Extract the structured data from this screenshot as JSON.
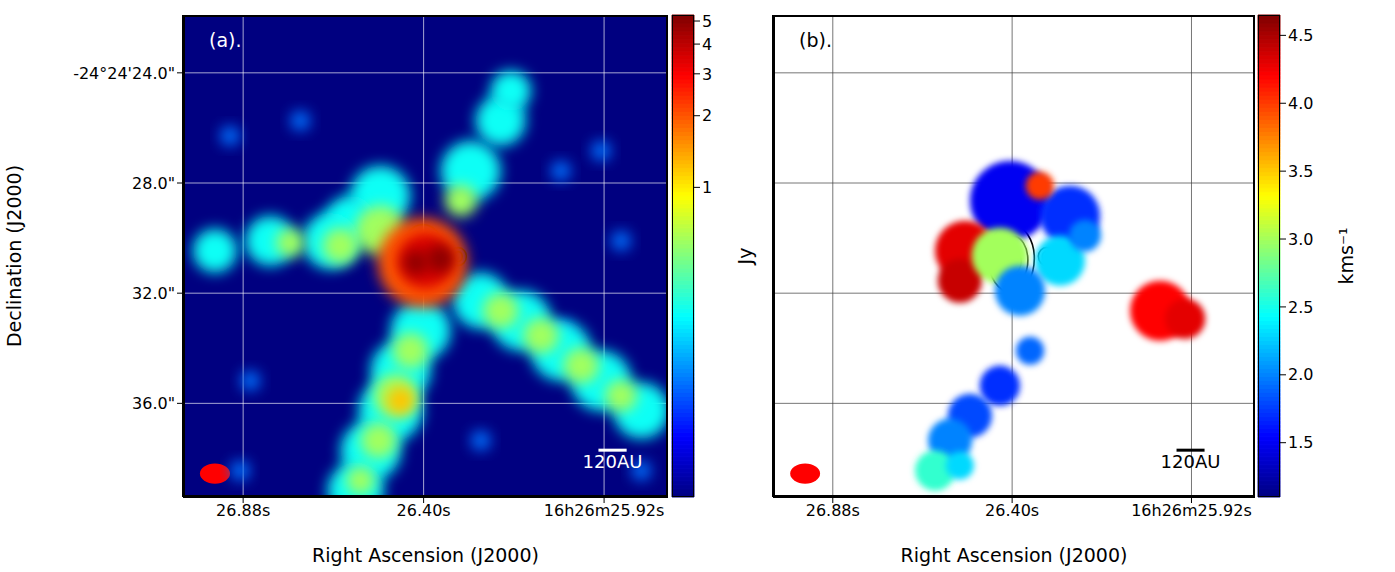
{
  "chart_data": [
    {
      "type": "heatmap",
      "title": "(a).",
      "x_label": "Right Ascension (J2000)",
      "y_label": "Declination (J2000)",
      "xlim": [
        27.04,
        25.75
      ],
      "xticks": [
        {
          "value": 26.88,
          "label": "26.88s"
        },
        {
          "value": 26.4,
          "label": "26.40s"
        },
        {
          "value": 25.92,
          "label": "16h26m25.92s"
        }
      ],
      "ylim": [
        39.4,
        21.9
      ],
      "yticks": [
        {
          "value": 24,
          "label": "-24°24'24.0\""
        },
        {
          "value": 28,
          "label": "28.0\""
        },
        {
          "value": 32,
          "label": "32.0\""
        },
        {
          "value": 36,
          "label": "36.0\""
        }
      ],
      "grid": true,
      "colorbar": {
        "label": "Jy",
        "log": true,
        "range": [
          0.05,
          5.3
        ],
        "ticks": [
          1,
          2,
          3,
          4,
          5
        ]
      },
      "blobs": [
        {
          "x": 26.915,
          "y": 26.29,
          "r": 0.36,
          "value": 0.15
        },
        {
          "x": 26.728,
          "y": 25.74,
          "r": 0.36,
          "value": 0.15
        },
        {
          "x": 25.928,
          "y": 26.83,
          "r": 0.36,
          "value": 0.15
        },
        {
          "x": 25.875,
          "y": 30.1,
          "r": 0.36,
          "value": 0.15
        },
        {
          "x": 26.035,
          "y": 27.56,
          "r": 0.36,
          "value": 0.15
        },
        {
          "x": 26.861,
          "y": 35.18,
          "r": 0.36,
          "value": 0.15
        },
        {
          "x": 26.035,
          "y": 33.36,
          "r": 0.36,
          "value": 0.15
        },
        {
          "x": 26.888,
          "y": 38.44,
          "r": 0.36,
          "value": 0.15
        },
        {
          "x": 25.821,
          "y": 38.44,
          "r": 0.36,
          "value": 0.15
        },
        {
          "x": 26.248,
          "y": 37.35,
          "r": 0.36,
          "value": 0.15
        },
        {
          "x": 26.275,
          "y": 27.56,
          "r": 1.09,
          "value": 0.3
        },
        {
          "x": 26.195,
          "y": 25.74,
          "r": 0.91,
          "value": 0.3
        },
        {
          "x": 26.168,
          "y": 24.65,
          "r": 0.73,
          "value": 0.3
        },
        {
          "x": 26.515,
          "y": 28.46,
          "r": 1.09,
          "value": 0.3
        },
        {
          "x": 26.595,
          "y": 29.37,
          "r": 0.91,
          "value": 0.3
        },
        {
          "x": 26.648,
          "y": 30.1,
          "r": 1.02,
          "value": 0.3
        },
        {
          "x": 26.808,
          "y": 30.1,
          "r": 0.91,
          "value": 0.3
        },
        {
          "x": 26.955,
          "y": 30.46,
          "r": 0.8,
          "value": 0.3
        },
        {
          "x": 26.248,
          "y": 32.27,
          "r": 1.02,
          "value": 0.3
        },
        {
          "x": 26.141,
          "y": 33.0,
          "r": 1.09,
          "value": 0.3
        },
        {
          "x": 26.035,
          "y": 34.09,
          "r": 1.09,
          "value": 0.3
        },
        {
          "x": 25.928,
          "y": 35.18,
          "r": 1.09,
          "value": 0.3
        },
        {
          "x": 25.821,
          "y": 36.26,
          "r": 1.02,
          "value": 0.3
        },
        {
          "x": 26.408,
          "y": 33.36,
          "r": 1.09,
          "value": 0.3
        },
        {
          "x": 26.461,
          "y": 34.81,
          "r": 1.09,
          "value": 0.3
        },
        {
          "x": 26.488,
          "y": 36.26,
          "r": 1.16,
          "value": 0.3
        },
        {
          "x": 26.541,
          "y": 37.72,
          "r": 1.09,
          "value": 0.3
        },
        {
          "x": 26.581,
          "y": 39.17,
          "r": 1.02,
          "value": 0.3
        },
        {
          "x": 26.515,
          "y": 29.73,
          "r": 0.91,
          "value": 0.6
        },
        {
          "x": 26.621,
          "y": 30.28,
          "r": 0.65,
          "value": 0.6
        },
        {
          "x": 26.755,
          "y": 30.17,
          "r": 0.51,
          "value": 0.6
        },
        {
          "x": 26.195,
          "y": 32.64,
          "r": 0.65,
          "value": 0.6
        },
        {
          "x": 26.088,
          "y": 33.54,
          "r": 0.65,
          "value": 0.6
        },
        {
          "x": 25.981,
          "y": 34.63,
          "r": 0.65,
          "value": 0.6
        },
        {
          "x": 25.875,
          "y": 35.72,
          "r": 0.58,
          "value": 0.6
        },
        {
          "x": 26.435,
          "y": 34.09,
          "r": 0.65,
          "value": 0.6
        },
        {
          "x": 26.475,
          "y": 35.72,
          "r": 0.8,
          "value": 0.6
        },
        {
          "x": 26.52,
          "y": 37.35,
          "r": 0.65,
          "value": 0.6
        },
        {
          "x": 26.568,
          "y": 38.8,
          "r": 0.51,
          "value": 0.6
        },
        {
          "x": 26.301,
          "y": 28.64,
          "r": 0.58,
          "value": 0.6
        },
        {
          "x": 26.461,
          "y": 35.9,
          "r": 0.51,
          "value": 1.2
        },
        {
          "x": 26.403,
          "y": 30.89,
          "r": 1.63,
          "value": 2
        },
        {
          "x": 26.395,
          "y": 30.82,
          "r": 1.02,
          "value": 3.5
        },
        {
          "x": 26.355,
          "y": 30.75,
          "r": 0.51,
          "value": 5
        },
        {
          "x": 26.421,
          "y": 30.89,
          "r": 0.44,
          "value": 5
        }
      ],
      "contours": [
        {
          "x": 26.402,
          "y": 30.74,
          "width": 0.123,
          "height": 2.46
        },
        {
          "x": 26.398,
          "y": 30.8,
          "width": 0.08,
          "height": 1.74
        },
        {
          "x": 26.395,
          "y": 30.87,
          "width": 0.037,
          "height": 0.8
        },
        {
          "x": 26.308,
          "y": 30.67,
          "width": 0.043,
          "height": 0.65
        },
        {
          "x": 26.308,
          "y": 30.67,
          "width": 0.021,
          "height": 0.36
        }
      ],
      "beam": {
        "x": 26.955,
        "y": 38.55,
        "width": 0.08,
        "height": 0.73
      },
      "scale_bar": {
        "label": "120AU",
        "x1": 25.935,
        "x2": 25.86,
        "y": 37.7
      }
    },
    {
      "type": "heatmap",
      "title": "(b).",
      "x_label": "Right Ascension (J2000)",
      "xlim": [
        27.04,
        25.75
      ],
      "xticks": [
        {
          "value": 26.88,
          "label": "26.88s"
        },
        {
          "value": 26.4,
          "label": "26.40s"
        },
        {
          "value": 25.92,
          "label": "16h26m25.92s"
        }
      ],
      "ylim": [
        39.4,
        21.9
      ],
      "yticks": [
        {
          "value": 24,
          "label": "-24°24'24.0\""
        },
        {
          "value": 28,
          "label": "28.0\""
        },
        {
          "value": 32,
          "label": "32.0\""
        },
        {
          "value": 36,
          "label": "36.0\""
        }
      ],
      "grid": true,
      "tick_labels": "x",
      "colorbar": {
        "label": "kms⁻¹",
        "range": [
          1.1,
          4.65
        ],
        "ticks": [
          1.5,
          {
            "value": 2,
            "label": "2.0"
          },
          2.5,
          {
            "value": 3,
            "label": "3.0"
          },
          3.5,
          {
            "value": 4,
            "label": "4.0"
          },
          4.5
        ]
      },
      "blobs": [
        {
          "x": 26.406,
          "y": 28.64,
          "r": 1.45,
          "value": 1.5
        },
        {
          "x": 26.245,
          "y": 29.19,
          "r": 1.09,
          "value": 1.7
        },
        {
          "x": 26.526,
          "y": 30.46,
          "r": 1.09,
          "value": 4.3
        },
        {
          "x": 26.54,
          "y": 31.55,
          "r": 0.8,
          "value": 4.4
        },
        {
          "x": 26.433,
          "y": 30.64,
          "r": 1.02,
          "value": 3.0
        },
        {
          "x": 26.272,
          "y": 30.82,
          "r": 0.91,
          "value": 2.3
        },
        {
          "x": 26.379,
          "y": 31.91,
          "r": 0.91,
          "value": 2.0
        },
        {
          "x": 26.205,
          "y": 29.91,
          "r": 0.58,
          "value": 2.0
        },
        {
          "x": 26.326,
          "y": 28.1,
          "r": 0.51,
          "value": 4.0
        },
        {
          "x": 26.004,
          "y": 32.64,
          "r": 1.09,
          "value": 4.2
        },
        {
          "x": 25.937,
          "y": 32.93,
          "r": 0.73,
          "value": 4.3
        },
        {
          "x": 26.352,
          "y": 34.09,
          "r": 0.51,
          "value": 1.9
        },
        {
          "x": 26.433,
          "y": 35.36,
          "r": 0.73,
          "value": 1.7
        },
        {
          "x": 26.513,
          "y": 36.45,
          "r": 0.8,
          "value": 1.8
        },
        {
          "x": 26.566,
          "y": 37.35,
          "r": 0.8,
          "value": 2.0
        },
        {
          "x": 26.606,
          "y": 38.44,
          "r": 0.73,
          "value": 2.6
        },
        {
          "x": 26.54,
          "y": 38.26,
          "r": 0.51,
          "value": 2.3
        }
      ],
      "contours": [
        {
          "x": 26.402,
          "y": 30.74,
          "width": 0.123,
          "height": 2.46
        },
        {
          "x": 26.398,
          "y": 30.8,
          "width": 0.08,
          "height": 1.74
        },
        {
          "x": 26.395,
          "y": 30.87,
          "width": 0.037,
          "height": 0.8
        },
        {
          "x": 26.308,
          "y": 30.67,
          "width": 0.043,
          "height": 0.65
        },
        {
          "x": 26.308,
          "y": 30.67,
          "width": 0.021,
          "height": 0.36
        }
      ],
      "beam": {
        "x": 26.954,
        "y": 38.55,
        "width": 0.08,
        "height": 0.73
      },
      "scale_bar": {
        "label": "120AU",
        "x1": 25.96,
        "x2": 25.885,
        "y": 37.7
      }
    }
  ]
}
